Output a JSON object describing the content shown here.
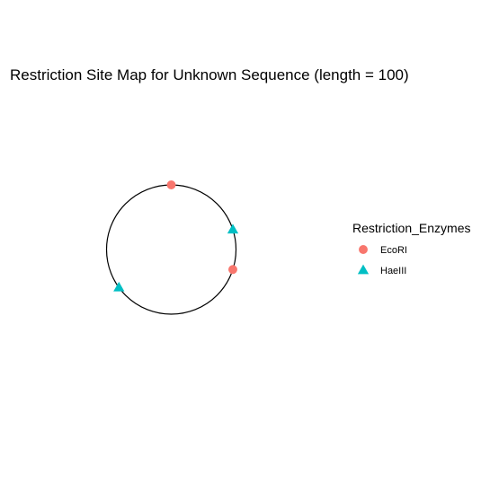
{
  "chart_data": {
    "type": "scatter",
    "coordinate_system": "polar",
    "title": "Restriction Site Map for Unknown Sequence (length = 100)",
    "sequence_length": 100,
    "grid": false,
    "legend": {
      "title": "Restriction_Enzymes",
      "placement": "right"
    },
    "series": [
      {
        "name": "EcoRI",
        "shape": "circle",
        "color": "#F8766D",
        "positions": [
          0,
          30
        ]
      },
      {
        "name": "HaeIII",
        "shape": "triangle",
        "color": "#00BFC4",
        "positions": [
          20,
          65
        ]
      }
    ]
  }
}
